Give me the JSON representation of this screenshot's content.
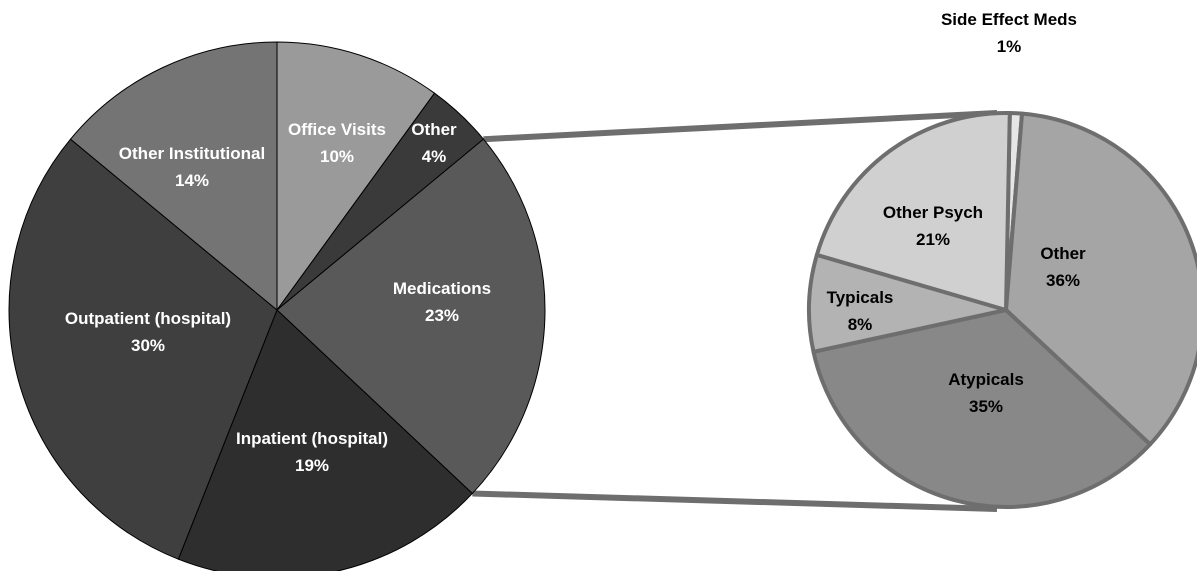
{
  "chart_data": [
    {
      "type": "pie",
      "unit": "%",
      "slices": [
        {
          "label": "Office Visits",
          "value": 10,
          "value_text": "10%",
          "color": "#9a9a9a"
        },
        {
          "label": "Other",
          "value": 4,
          "value_text": "4%",
          "color": "#3a3a3a"
        },
        {
          "label": "Medications",
          "value": 23,
          "value_text": "23%",
          "color": "#595959"
        },
        {
          "label": "Inpatient (hospital)",
          "value": 19,
          "value_text": "19%",
          "color": "#2e2e2e"
        },
        {
          "label": "Outpatient (hospital)",
          "value": 30,
          "value_text": "30%",
          "color": "#3f3f3f"
        },
        {
          "label": "Other Institutional",
          "value": 14,
          "value_text": "14%",
          "color": "#747474"
        }
      ],
      "exploded_slice": "Medications"
    },
    {
      "type": "pie",
      "unit": "%",
      "slices": [
        {
          "label": "Side Effect Meds",
          "value": 1,
          "value_text": "1%",
          "color": "#e6e6e6"
        },
        {
          "label": "Other",
          "value": 36,
          "value_text": "36%",
          "color": "#a5a5a5"
        },
        {
          "label": "Atypicals",
          "value": 35,
          "value_text": "35%",
          "color": "#888888"
        },
        {
          "label": "Typicals",
          "value": 8,
          "value_text": "8%",
          "color": "#b3b3b3"
        },
        {
          "label": "Other Psych",
          "value": 21,
          "value_text": "21%",
          "color": "#d0d0d0"
        }
      ],
      "slice_border_color": "#6e6e6e",
      "connector_color": "#6e6e6e"
    }
  ]
}
